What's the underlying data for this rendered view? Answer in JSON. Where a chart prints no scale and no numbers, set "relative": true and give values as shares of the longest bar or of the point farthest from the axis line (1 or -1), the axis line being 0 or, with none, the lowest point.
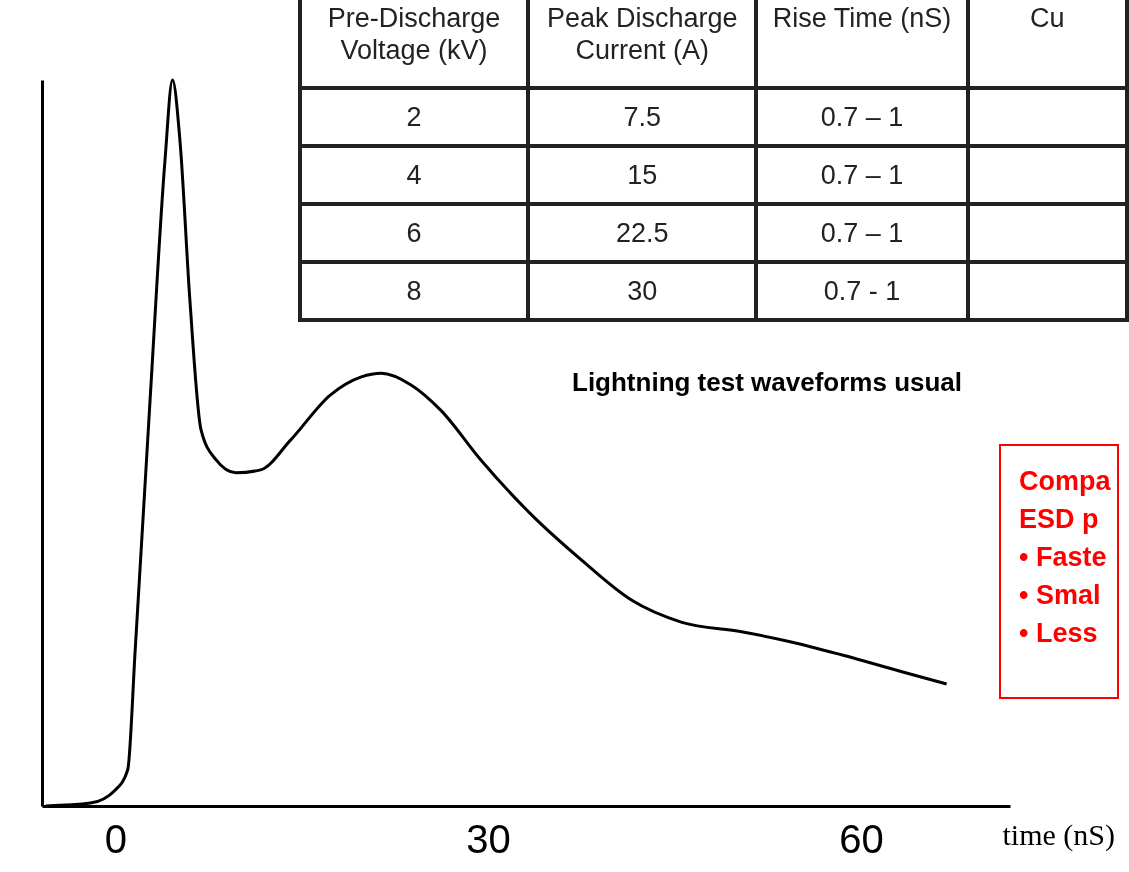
{
  "chart_data": {
    "type": "line",
    "relative": true,
    "xlabel": "time (nS)",
    "xlim": [
      -5.9,
      72
    ],
    "xticks": [
      0,
      30,
      60
    ],
    "grid": false,
    "x": [
      -5.6,
      -2.0,
      0,
      1.0,
      1.6,
      2.8,
      4.0,
      4.6,
      5.2,
      6.0,
      6.9,
      8.1,
      9.7,
      11.7,
      14.1,
      17.3,
      19.8,
      21.4,
      23.8,
      26.2,
      29.4,
      33.5,
      37.5,
      41.5,
      45.6,
      50.4,
      54.4,
      58.5,
      63.3,
      66.9
    ],
    "series": [
      {
        "color": "#000000",
        "values": [
          0,
          0.004,
          0.022,
          0.05,
          0.215,
          0.56,
          0.89,
          1,
          0.917,
          0.697,
          0.518,
          0.477,
          0.459,
          0.463,
          0.504,
          0.566,
          0.591,
          0.596,
          0.58,
          0.545,
          0.477,
          0.401,
          0.339,
          0.284,
          0.253,
          0.24,
          0.226,
          0.208,
          0.185,
          0.168
        ]
      }
    ],
    "annotations": [
      "Pre-Discharge Voltage (kV)",
      "Peak Discharge Current (A)",
      "Rise Time (nS)",
      "Cu",
      "2",
      "7.5",
      "0.7 – 1",
      "4",
      "15",
      "0.7 – 1",
      "6",
      "22.5",
      "0.7 – 1",
      "8",
      "30",
      "0.7 - 1",
      "Lightning test waveforms usual",
      "Compa",
      "ESD p",
      "• Faste",
      "• Smal",
      "• Less"
    ]
  }
}
